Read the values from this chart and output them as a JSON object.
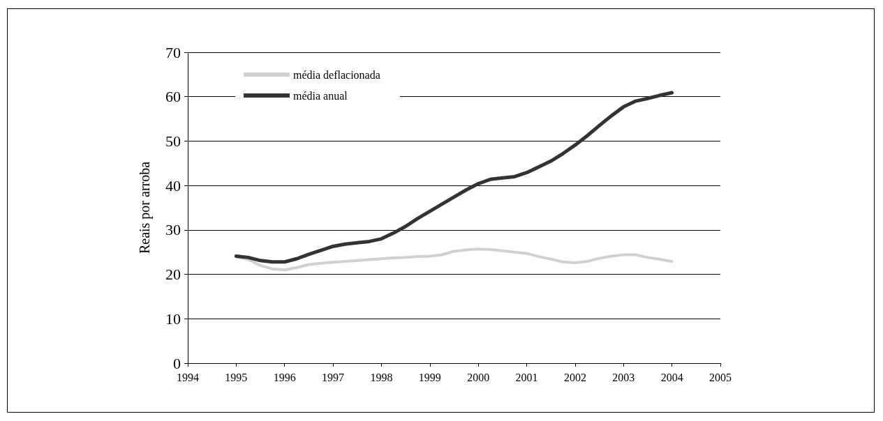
{
  "chart_data": {
    "type": "line",
    "ylabel": "Reais por arroba",
    "x": [
      1995,
      1995.25,
      1995.5,
      1995.75,
      1996,
      1996.25,
      1996.5,
      1996.75,
      1997,
      1997.25,
      1997.5,
      1997.75,
      1998,
      1998.25,
      1998.5,
      1998.75,
      1999,
      1999.25,
      1999.5,
      1999.75,
      2000,
      2000.25,
      2000.5,
      2000.75,
      2001,
      2001.25,
      2001.5,
      2001.75,
      2002,
      2002.25,
      2002.5,
      2002.75,
      2003,
      2003.25,
      2003.5,
      2003.75,
      2004
    ],
    "series": [
      {
        "name": "média deflacionada",
        "color": "#d0d0d0",
        "values": [
          24.0,
          23.3,
          22.0,
          21.2,
          21.0,
          21.5,
          22.2,
          22.5,
          22.7,
          22.9,
          23.1,
          23.3,
          23.5,
          23.7,
          23.8,
          24.0,
          24.1,
          24.4,
          25.2,
          25.5,
          25.7,
          25.6,
          25.3,
          25.0,
          24.7,
          24.0,
          23.4,
          22.8,
          22.6,
          22.9,
          23.6,
          24.1,
          24.4,
          24.4,
          23.8,
          23.4,
          22.9
        ]
      },
      {
        "name": "média anual",
        "color": "#333333",
        "values": [
          24.1,
          23.8,
          23.1,
          22.8,
          22.8,
          23.5,
          24.5,
          25.4,
          26.3,
          26.8,
          27.1,
          27.4,
          28.0,
          29.3,
          30.8,
          32.6,
          34.2,
          35.8,
          37.4,
          39.0,
          40.4,
          41.4,
          41.7,
          42.0,
          42.9,
          44.2,
          45.5,
          47.2,
          49.1,
          51.2,
          53.5,
          55.7,
          57.7,
          59.0,
          59.6,
          60.3,
          60.9
        ]
      }
    ],
    "xlim": [
      1994,
      2005
    ],
    "xticks": [
      1994,
      1995,
      1996,
      1997,
      1998,
      1999,
      2000,
      2001,
      2002,
      2003,
      2004,
      2005
    ],
    "ylim": [
      0,
      70
    ],
    "yticks": [
      0,
      10,
      20,
      30,
      40,
      50,
      60,
      70
    ],
    "grid": "y",
    "legend": "top left",
    "marker": "none",
    "line_style": "solid"
  }
}
